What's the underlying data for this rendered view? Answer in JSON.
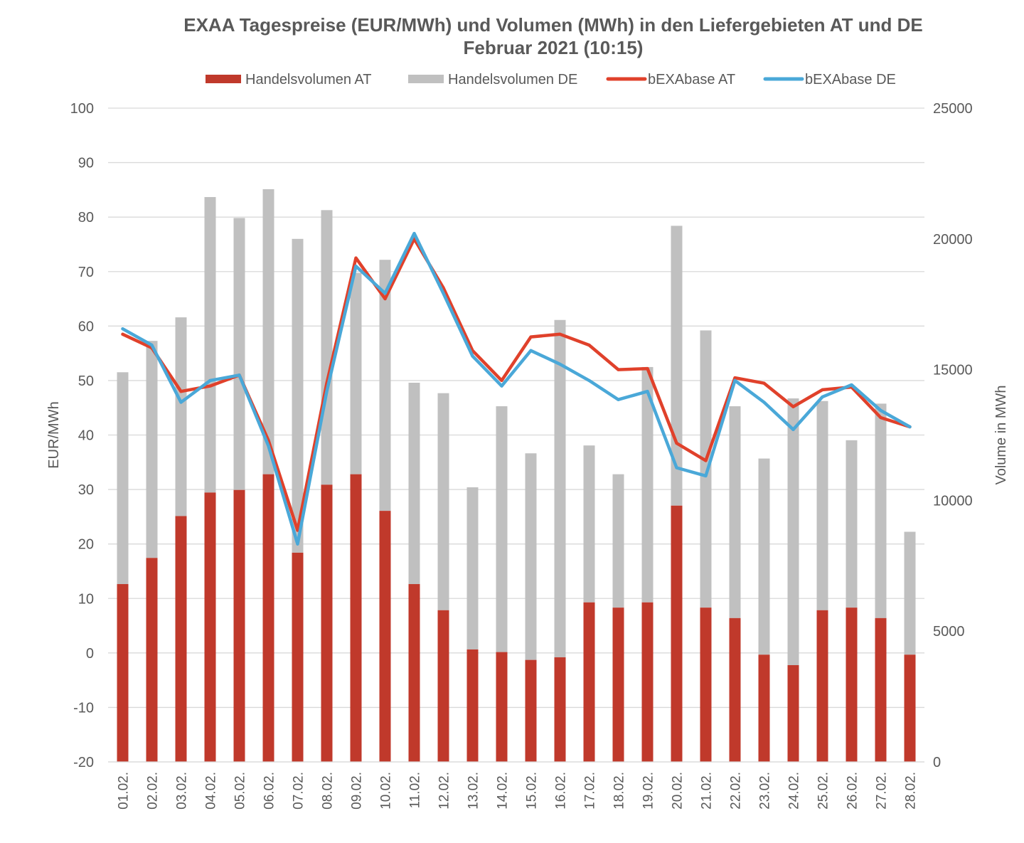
{
  "chart_data": {
    "type": "bar+line",
    "title": "EXAA Tagespreise (EUR/MWh) und Volumen (MWh) in den Liefergebieten AT und DE",
    "subtitle": "Februar 2021 (10:15)",
    "ylabel_left": "EUR/MWh",
    "ylabel_right": "Volume in MWh",
    "ylim_left": [
      -20,
      100
    ],
    "ylim_right": [
      0,
      25000
    ],
    "yticks_left": [
      "100",
      "90",
      "80",
      "70",
      "60",
      "50",
      "40",
      "30",
      "20",
      "10",
      "0",
      "-10",
      "-20"
    ],
    "yticks_right": [
      "25000",
      "20000",
      "15000",
      "10000",
      "5000",
      "0"
    ],
    "grid": true,
    "legend_position": "top",
    "categories": [
      "01.02.",
      "02.02.",
      "03.02.",
      "04.02.",
      "05.02.",
      "06.02.",
      "07.02.",
      "08.02.",
      "09.02.",
      "10.02.",
      "11.02.",
      "12.02.",
      "13.02.",
      "14.02.",
      "15.02.",
      "16.02.",
      "17.02.",
      "18.02.",
      "19.02.",
      "20.02.",
      "21.02.",
      "22.02.",
      "23.02.",
      "24.02.",
      "25.02.",
      "26.02.",
      "27.02.",
      "28.02."
    ],
    "bar_series": [
      {
        "name": "Handelsvolumen AT",
        "axis": "right",
        "color": "#c0392b",
        "values": [
          6800,
          7800,
          9400,
          10300,
          10400,
          11000,
          8000,
          10600,
          11000,
          9600,
          6800,
          5800,
          4300,
          4200,
          3900,
          4000,
          6100,
          5900,
          6100,
          9800,
          5900,
          5500,
          4100,
          3700,
          5800,
          5900,
          5500,
          4100
        ]
      },
      {
        "name": "Handelsvolumen DE",
        "axis": "right",
        "color": "#c0c0c0",
        "values": [
          8100,
          8300,
          7600,
          11300,
          10400,
          10900,
          12000,
          10500,
          7700,
          9600,
          7700,
          8300,
          6200,
          9400,
          7900,
          12900,
          6000,
          5100,
          9000,
          10700,
          10600,
          8100,
          7500,
          10200,
          8000,
          6400,
          8200,
          4700
        ]
      }
    ],
    "line_series": [
      {
        "name": "bEXAbase AT",
        "axis": "left",
        "color": "#e0412b",
        "values": [
          58.5,
          56.0,
          48.0,
          49.0,
          51.0,
          39.0,
          22.5,
          49.5,
          72.5,
          65.0,
          76.0,
          67.0,
          55.5,
          50.0,
          58.0,
          58.5,
          56.5,
          52.0,
          52.2,
          38.5,
          35.3,
          50.5,
          49.5,
          45.2,
          48.3,
          48.8,
          43.2,
          41.5
        ]
      },
      {
        "name": "bEXAbase DE",
        "axis": "left",
        "color": "#4aa8d8",
        "values": [
          59.5,
          56.5,
          46.0,
          50.0,
          51.0,
          38.0,
          20.0,
          48.0,
          71.0,
          66.0,
          77.0,
          66.0,
          54.5,
          49.0,
          55.5,
          53.0,
          50.0,
          46.5,
          48.0,
          34.0,
          32.5,
          50.0,
          46.0,
          41.0,
          47.0,
          49.2,
          44.5,
          41.5
        ]
      }
    ]
  }
}
